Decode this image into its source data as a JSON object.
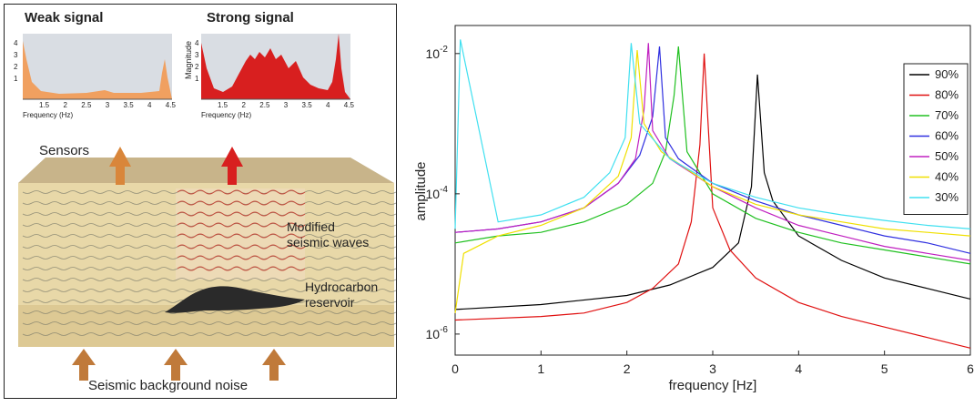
{
  "diagram": {
    "weak_title": "Weak signal",
    "strong_title": "Strong signal",
    "freq_label_weak": "Frequency (Hz)",
    "freq_label_strong": "Frequency (Hz)",
    "magnitude_label": "Magnitude",
    "y_ticks": [
      "4",
      "3",
      "2",
      "1"
    ],
    "x_ticks": [
      "1.5",
      "2",
      "2.5",
      "3",
      "3.5",
      "4",
      "4.5"
    ],
    "sensors": "Sensors",
    "modified_1": "Modified",
    "modified_2": "seismic waves",
    "hydro_1": "Hydrocarbon",
    "hydro_2": "reservoir",
    "noise": "Seismic background noise",
    "colors": {
      "weak": "#f0a060",
      "strong": "#d81f1f",
      "panel_bg": "#d9dde3",
      "ground": "#e8d8a8",
      "arrow": "#d9863a",
      "reservoir": "#2a2a2a"
    }
  },
  "chart_data": {
    "type": "line",
    "xlabel": "frequency [Hz]",
    "ylabel": "amplitude",
    "xlim": [
      0,
      6
    ],
    "ylim_log10": [
      -6.3,
      -1.6
    ],
    "yscale": "log",
    "x_ticks": [
      "0",
      "1",
      "2",
      "3",
      "4",
      "5",
      "6"
    ],
    "y_ticks": [
      {
        "base": "10",
        "exp": "-2"
      },
      {
        "base": "10",
        "exp": "-4"
      },
      {
        "base": "10",
        "exp": "-6"
      }
    ],
    "legend_position": "top-right",
    "series": [
      {
        "name": "90%",
        "color": "#000000",
        "x": [
          0.0,
          1.0,
          2.0,
          2.5,
          3.0,
          3.3,
          3.45,
          3.52,
          3.6,
          3.7,
          4.0,
          4.5,
          5.0,
          5.5,
          6.0
        ],
        "y": [
          -5.65,
          -5.58,
          -5.45,
          -5.3,
          -5.05,
          -4.7,
          -3.9,
          -2.3,
          -3.7,
          -4.1,
          -4.6,
          -4.95,
          -5.2,
          -5.35,
          -5.5
        ]
      },
      {
        "name": "80%",
        "color": "#e01010",
        "x": [
          0.0,
          1.0,
          1.5,
          2.0,
          2.3,
          2.6,
          2.75,
          2.85,
          2.9,
          3.0,
          3.2,
          3.5,
          4.0,
          4.5,
          5.0,
          5.5,
          6.0
        ],
        "y": [
          -5.8,
          -5.75,
          -5.7,
          -5.55,
          -5.35,
          -5.0,
          -4.4,
          -3.3,
          -2.0,
          -4.2,
          -4.8,
          -5.2,
          -5.55,
          -5.75,
          -5.9,
          -6.05,
          -6.2
        ]
      },
      {
        "name": "70%",
        "color": "#20c020",
        "x": [
          0.0,
          0.5,
          1.0,
          1.5,
          2.0,
          2.3,
          2.45,
          2.55,
          2.6,
          2.7,
          3.0,
          3.5,
          4.0,
          4.5,
          5.0,
          5.5,
          6.0
        ],
        "y": [
          -4.7,
          -4.6,
          -4.55,
          -4.4,
          -4.15,
          -3.85,
          -3.4,
          -2.6,
          -1.9,
          -3.4,
          -4.0,
          -4.35,
          -4.55,
          -4.7,
          -4.8,
          -4.9,
          -5.0
        ]
      },
      {
        "name": "60%",
        "color": "#3030e0",
        "x": [
          0.0,
          0.5,
          1.0,
          1.5,
          1.9,
          2.15,
          2.3,
          2.38,
          2.45,
          2.6,
          3.0,
          3.5,
          4.0,
          4.5,
          5.0,
          5.5,
          6.0
        ],
        "y": [
          -4.55,
          -4.5,
          -4.4,
          -4.2,
          -3.85,
          -3.45,
          -2.9,
          -1.9,
          -3.2,
          -3.5,
          -3.85,
          -4.1,
          -4.3,
          -4.45,
          -4.6,
          -4.7,
          -4.85
        ]
      },
      {
        "name": "50%",
        "color": "#c020c0",
        "x": [
          0.0,
          0.5,
          1.0,
          1.5,
          1.9,
          2.1,
          2.2,
          2.25,
          2.3,
          2.5,
          3.0,
          3.5,
          4.0,
          4.5,
          5.0,
          5.5,
          6.0
        ],
        "y": [
          -4.55,
          -4.5,
          -4.4,
          -4.2,
          -3.85,
          -3.5,
          -2.8,
          -1.85,
          -3.1,
          -3.5,
          -3.9,
          -4.2,
          -4.45,
          -4.6,
          -4.75,
          -4.85,
          -4.95
        ]
      },
      {
        "name": "40%",
        "color": "#f0e000",
        "x": [
          0.0,
          0.1,
          0.5,
          1.0,
          1.5,
          1.9,
          2.05,
          2.12,
          2.2,
          2.4,
          3.0,
          3.5,
          4.0,
          4.5,
          5.0,
          5.5,
          6.0
        ],
        "y": [
          -5.7,
          -4.85,
          -4.6,
          -4.45,
          -4.2,
          -3.75,
          -3.2,
          -1.95,
          -3.0,
          -3.4,
          -3.9,
          -4.15,
          -4.3,
          -4.4,
          -4.5,
          -4.55,
          -4.6
        ]
      },
      {
        "name": "30%",
        "color": "#40e0f0",
        "x": [
          0.0,
          0.06,
          0.5,
          1.0,
          1.5,
          1.8,
          1.98,
          2.05,
          2.15,
          2.5,
          3.0,
          3.5,
          4.0,
          4.5,
          5.0,
          5.5,
          6.0
        ],
        "y": [
          -4.5,
          -1.8,
          -4.4,
          -4.3,
          -4.05,
          -3.7,
          -3.2,
          -1.85,
          -3.0,
          -3.5,
          -3.85,
          -4.05,
          -4.2,
          -4.3,
          -4.38,
          -4.45,
          -4.5
        ]
      }
    ]
  }
}
